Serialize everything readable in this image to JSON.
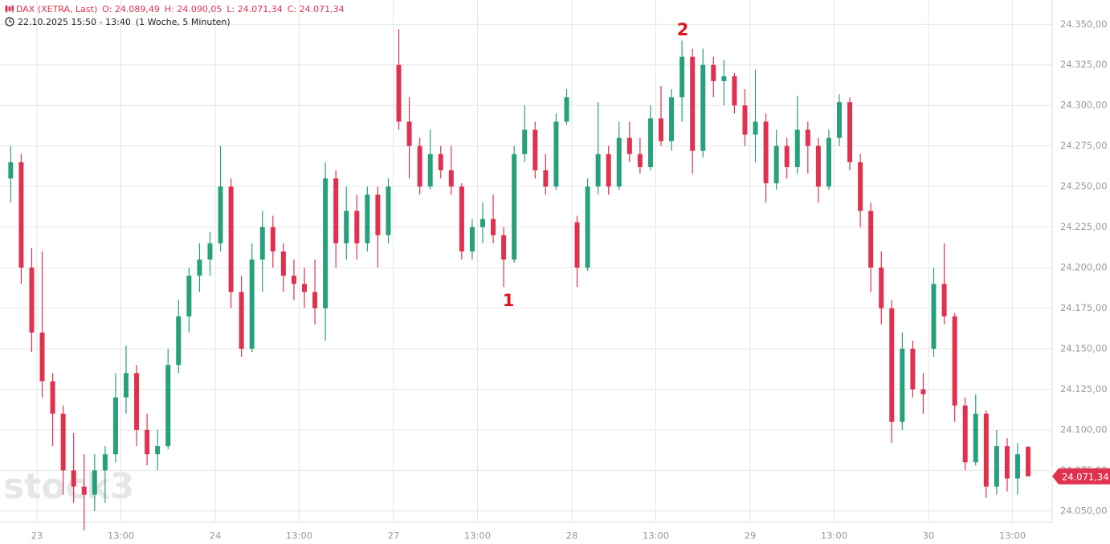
{
  "header": {
    "name": "DAX (XETRA, Last)",
    "open": "O: 24.089,49",
    "high": "H: 24.090,05",
    "low": "L: 24.071,34",
    "close": "C: 24.071,34",
    "range": "22.10.2025 15:50 - 13:40",
    "period": "(1 Woche, 5 Minuten)"
  },
  "chart_data": {
    "type": "candlestick",
    "watermark": "stock3",
    "annotations": [
      "1",
      "2"
    ],
    "up_color": "#26a17b",
    "down_color": "#e0314f",
    "grid": true,
    "ylim": [
      24043,
      24365
    ],
    "yticks": [
      {
        "value": 24050,
        "label": "24.050,00"
      },
      {
        "value": 24075,
        "label": "24.075,00"
      },
      {
        "value": 24100,
        "label": "24.100,00"
      },
      {
        "value": 24125,
        "label": "24.125,00"
      },
      {
        "value": 24150,
        "label": "24.150,00"
      },
      {
        "value": 24175,
        "label": "24.175,00"
      },
      {
        "value": 24200,
        "label": "24.200,00"
      },
      {
        "value": 24225,
        "label": "24.225,00"
      },
      {
        "value": 24250,
        "label": "24.250,00"
      },
      {
        "value": 24275,
        "label": "24.275,00"
      },
      {
        "value": 24300,
        "label": "24.300,00"
      },
      {
        "value": 24325,
        "label": "24.325,00"
      },
      {
        "value": 24350,
        "label": "24.350,00"
      }
    ],
    "last_price": {
      "value": 24071.34,
      "label": "24.071,34"
    },
    "categories": [
      null,
      null,
      null,
      "23",
      null,
      null,
      null,
      null,
      null,
      null,
      null,
      "13:00",
      null,
      null,
      null,
      null,
      null,
      null,
      null,
      null,
      "24",
      null,
      null,
      null,
      null,
      null,
      null,
      null,
      "13:00",
      null,
      null,
      null,
      null,
      null,
      null,
      null,
      null,
      "27",
      null,
      null,
      null,
      null,
      null,
      null,
      null,
      "13:00",
      null,
      null,
      null,
      null,
      null,
      null,
      null,
      null,
      "28",
      null,
      null,
      null,
      null,
      null,
      null,
      null,
      "13:00",
      null,
      null,
      null,
      null,
      null,
      null,
      null,
      null,
      "29",
      null,
      null,
      null,
      null,
      null,
      null,
      null,
      "13:00",
      null,
      null,
      null,
      null,
      null,
      null,
      null,
      null,
      "30",
      null,
      null,
      null,
      null,
      null,
      null,
      null,
      "13:00",
      null
    ],
    "open": [
      24255,
      24265,
      24200,
      24160,
      24130,
      24110,
      24075,
      24065,
      24060,
      24075,
      24085,
      24120,
      24135,
      24100,
      24085,
      24090,
      24140,
      24170,
      24195,
      24205,
      24215,
      24250,
      24185,
      24150,
      24205,
      24225,
      24210,
      24195,
      24190,
      24185,
      24175,
      24255,
      24215,
      24235,
      24215,
      24245,
      24220,
      24325,
      24290,
      24275,
      24250,
      24270,
      24260,
      24250,
      24210,
      24225,
      24230,
      24220,
      24205,
      24270,
      24285,
      24260,
      24250,
      24290,
      24228,
      24200,
      24250,
      24270,
      24250,
      24280,
      24270,
      24262,
      24292,
      24278,
      24305,
      24330,
      24272,
      24325,
      24315,
      24318,
      24300,
      24282,
      24290,
      24252,
      24275,
      24262,
      24285,
      24275,
      24250,
      24280,
      24302,
      24265,
      24235,
      24200,
      24175,
      24105,
      24150,
      24125,
      24150,
      24190,
      24170,
      24115,
      24080,
      24110,
      24065,
      24090,
      24070,
      24089.49
    ],
    "high": [
      24275,
      24270,
      24212,
      24210,
      24135,
      24115,
      24098,
      24085,
      24085,
      24090,
      24135,
      24152,
      24140,
      24110,
      24100,
      24150,
      24180,
      24200,
      24215,
      24222,
      24275,
      24255,
      24195,
      24215,
      24235,
      24232,
      24215,
      24205,
      24200,
      24205,
      24265,
      24260,
      24250,
      24245,
      24250,
      24250,
      24255,
      24347,
      24305,
      24280,
      24285,
      24275,
      24275,
      24252,
      24230,
      24240,
      24245,
      24225,
      24275,
      24300,
      24290,
      24270,
      24295,
      24310,
      24232,
      24255,
      24302,
      24275,
      24290,
      24290,
      24280,
      24300,
      24312,
      24310,
      24340,
      24335,
      24335,
      24330,
      24328,
      24320,
      24310,
      24322,
      24295,
      24285,
      24280,
      24306,
      24290,
      24280,
      24285,
      24307,
      24305,
      24270,
      24240,
      24210,
      24180,
      24160,
      24155,
      24135,
      24200,
      24215,
      24172,
      24120,
      24122,
      24112,
      24100,
      24095,
      24092,
      24090.05
    ],
    "low": [
      24240,
      24190,
      24148,
      24120,
      24090,
      24060,
      24055,
      24038,
      24050,
      24055,
      24080,
      24110,
      24090,
      24078,
      24075,
      24088,
      24135,
      24160,
      24185,
      24195,
      24210,
      24175,
      24145,
      24148,
      24185,
      24200,
      24185,
      24180,
      24175,
      24165,
      24155,
      24200,
      24205,
      24205,
      24210,
      24200,
      24215,
      24285,
      24255,
      24245,
      24248,
      24255,
      24245,
      24205,
      24205,
      24215,
      24215,
      24188,
      24203,
      24265,
      24255,
      24245,
      24248,
      24288,
      24188,
      24198,
      24245,
      24245,
      24248,
      24265,
      24258,
      24260,
      24275,
      24272,
      24290,
      24258,
      24268,
      24305,
      24300,
      24295,
      24275,
      24265,
      24240,
      24248,
      24255,
      24258,
      24258,
      24240,
      24248,
      24275,
      24260,
      24225,
      24185,
      24165,
      24092,
      24100,
      24120,
      24110,
      24145,
      24165,
      24105,
      24075,
      24078,
      24058,
      24060,
      24062,
      24060,
      24071.34
    ],
    "close": [
      24265,
      24200,
      24160,
      24130,
      24110,
      24075,
      24065,
      24060,
      24075,
      24085,
      24120,
      24135,
      24100,
      24085,
      24090,
      24140,
      24170,
      24195,
      24205,
      24215,
      24250,
      24185,
      24150,
      24205,
      24225,
      24210,
      24195,
      24190,
      24185,
      24175,
      24255,
      24215,
      24235,
      24215,
      24245,
      24220,
      24250,
      24290,
      24275,
      24250,
      24270,
      24260,
      24250,
      24210,
      24225,
      24230,
      24220,
      24205,
      24270,
      24285,
      24260,
      24250,
      24290,
      24305,
      24200,
      24250,
      24270,
      24250,
      24280,
      24270,
      24262,
      24292,
      24278,
      24305,
      24330,
      24272,
      24325,
      24315,
      24318,
      24300,
      24282,
      24290,
      24252,
      24275,
      24262,
      24285,
      24275,
      24250,
      24280,
      24302,
      24265,
      24235,
      24200,
      24175,
      24105,
      24150,
      24125,
      24122,
      24190,
      24170,
      24115,
      24080,
      24110,
      24065,
      24090,
      24070,
      24085,
      24071.34
    ]
  }
}
